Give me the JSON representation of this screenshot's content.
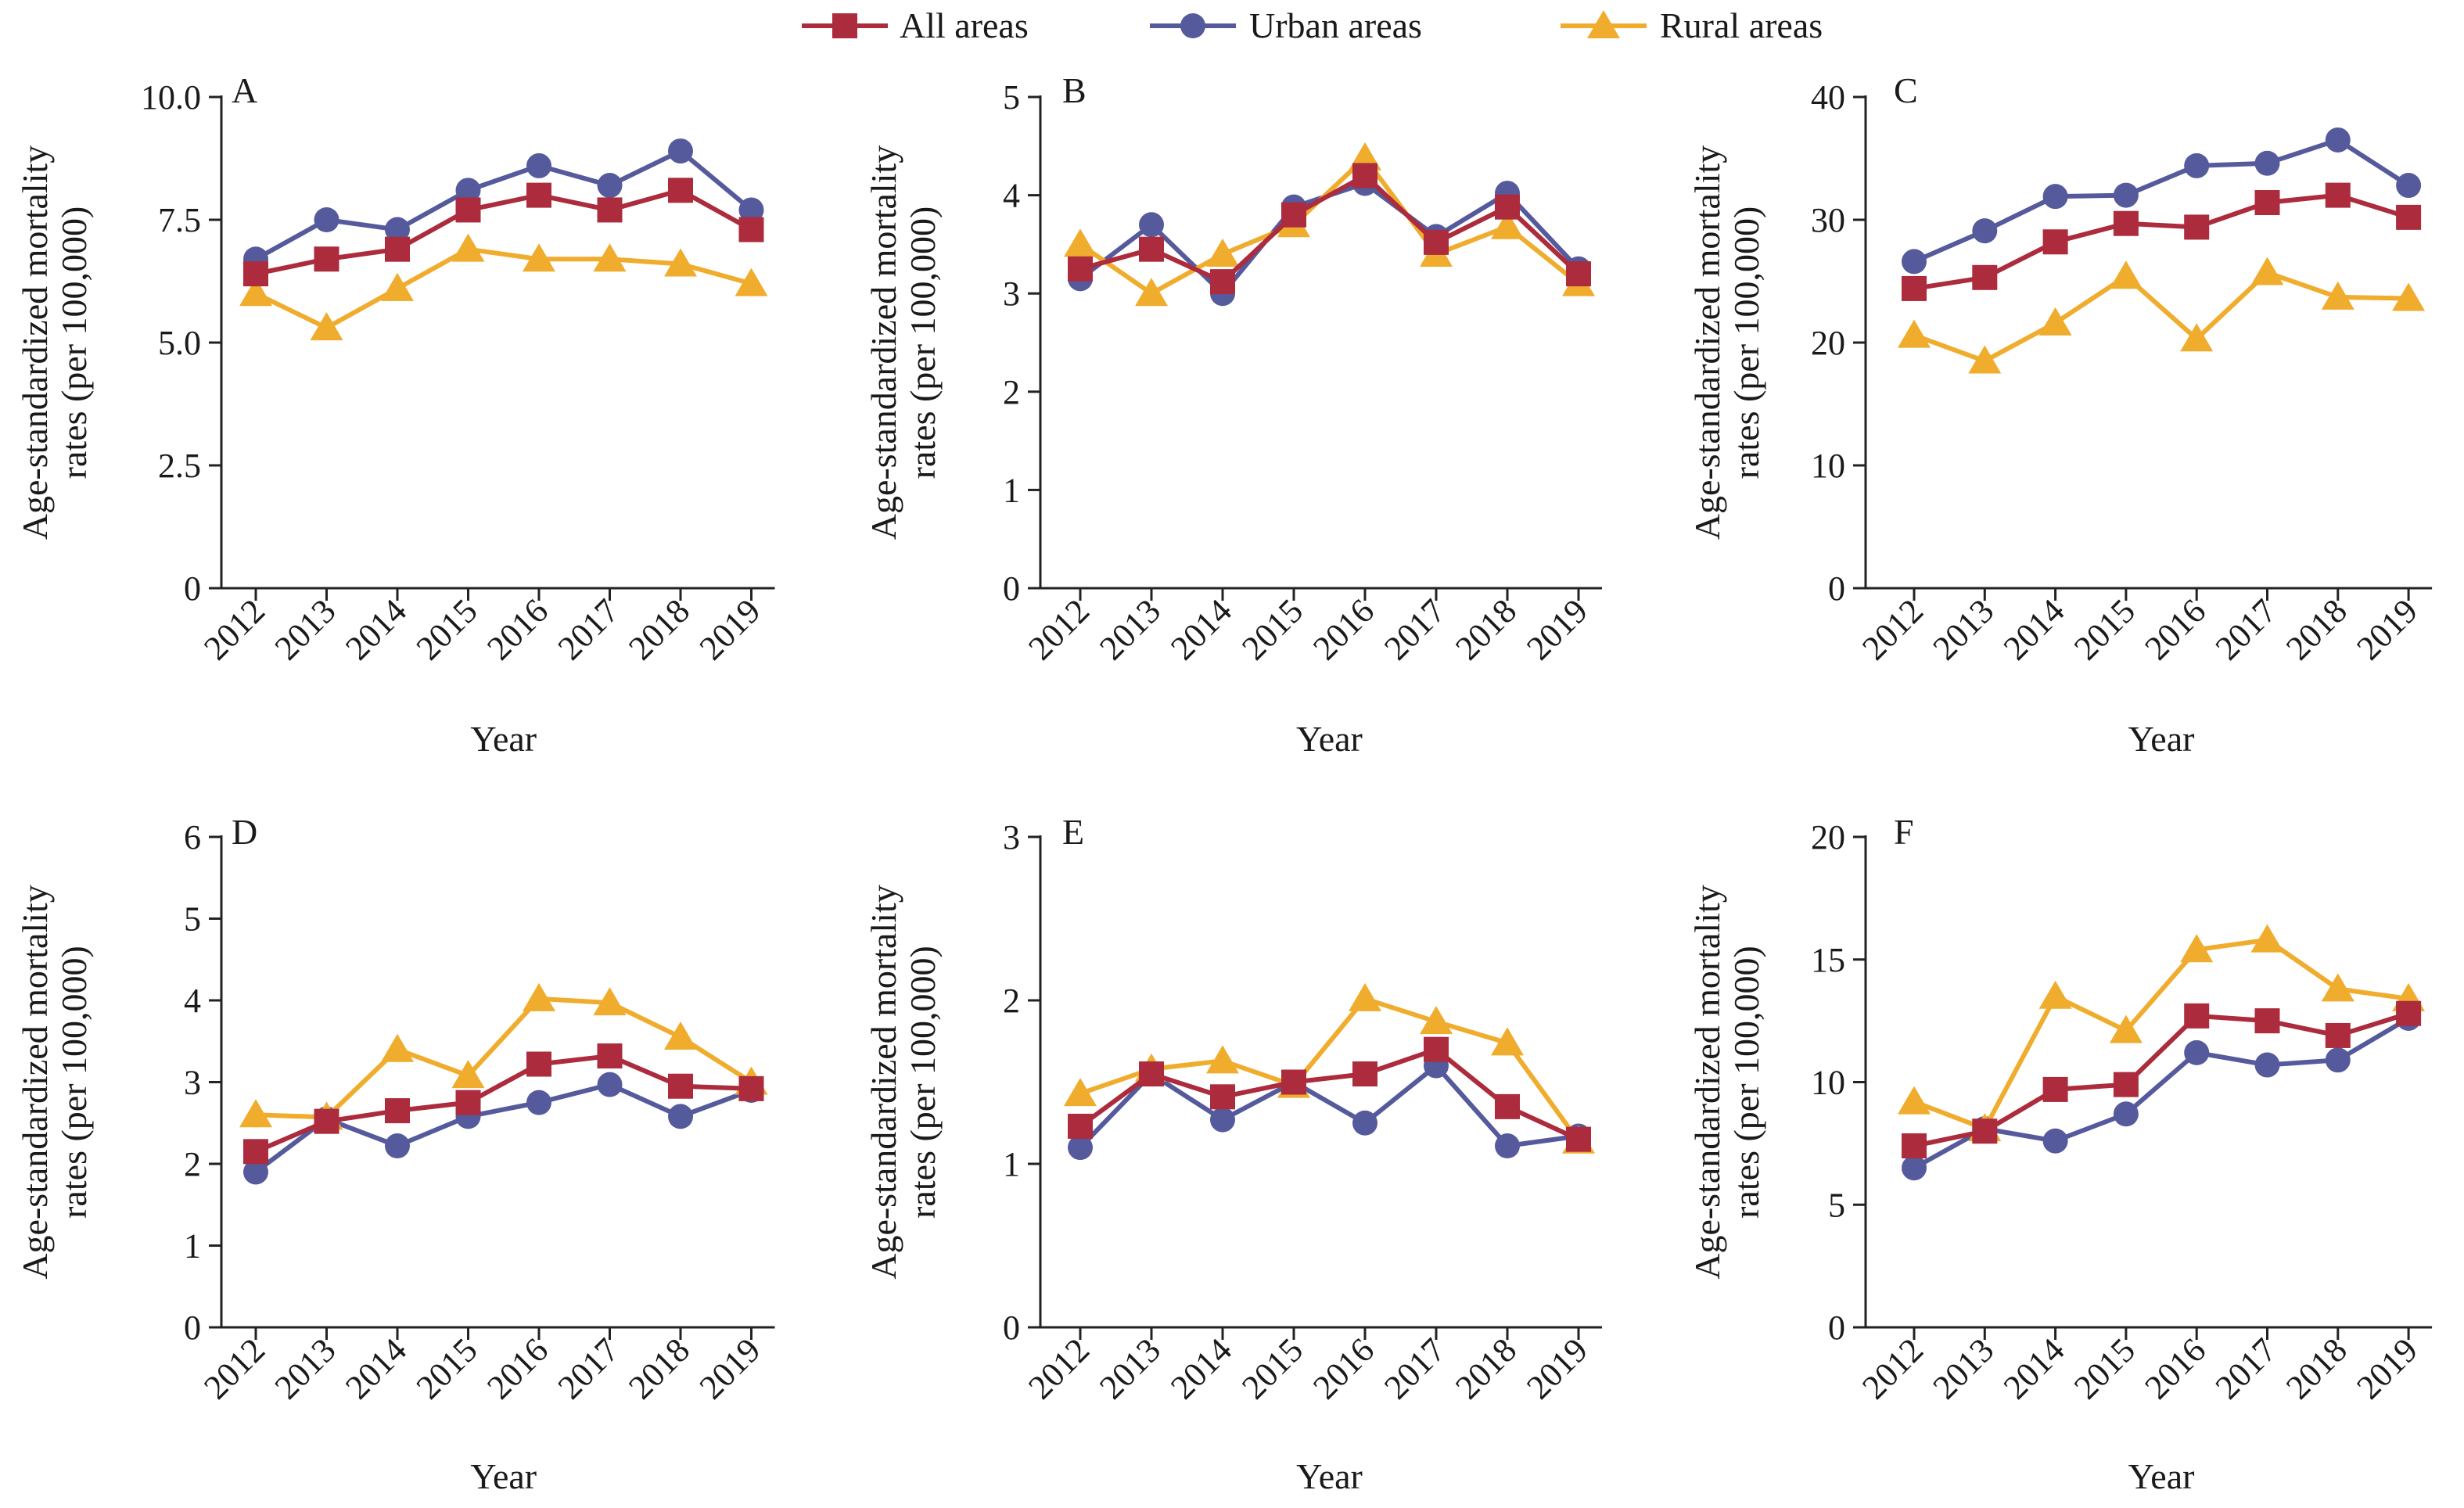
{
  "legend": [
    {
      "name": "All areas",
      "color": "#ac2b3c",
      "marker": "square"
    },
    {
      "name": "Urban areas",
      "color": "#555a9c",
      "marker": "circle"
    },
    {
      "name": "Rural areas",
      "color": "#f0ac2c",
      "marker": "triangle"
    }
  ],
  "chart_data": [
    {
      "type": "line",
      "panel": "A",
      "xlabel": "Year",
      "ylabel": [
        "Age-standardized mortality",
        "rates (per 100,000)"
      ],
      "categories": [
        "2012",
        "2013",
        "2014",
        "2015",
        "2016",
        "2017",
        "2018",
        "2019"
      ],
      "ylim": [
        0,
        10
      ],
      "yticks": [
        "0",
        "2.5",
        "5.0",
        "7.5",
        "10.0"
      ],
      "series": [
        {
          "name": "All areas",
          "values": [
            6.4,
            6.7,
            6.9,
            7.7,
            8.0,
            7.7,
            8.1,
            7.3
          ]
        },
        {
          "name": "Urban areas",
          "values": [
            6.7,
            7.5,
            7.3,
            8.1,
            8.6,
            8.2,
            8.9,
            7.7
          ]
        },
        {
          "name": "Rural areas",
          "values": [
            6.0,
            5.3,
            6.1,
            6.9,
            6.7,
            6.7,
            6.6,
            6.2
          ]
        }
      ]
    },
    {
      "type": "line",
      "panel": "B",
      "xlabel": "Year",
      "ylabel": [
        "Age-standardized mortality",
        "rates (per 100,000)"
      ],
      "categories": [
        "2012",
        "2013",
        "2014",
        "2015",
        "2016",
        "2017",
        "2018",
        "2019"
      ],
      "ylim": [
        0,
        5
      ],
      "yticks": [
        "0",
        "1",
        "2",
        "3",
        "4",
        "5"
      ],
      "series": [
        {
          "name": "All areas",
          "values": [
            3.25,
            3.45,
            3.12,
            3.8,
            4.2,
            3.52,
            3.88,
            3.2
          ]
        },
        {
          "name": "Urban areas",
          "values": [
            3.15,
            3.7,
            3.0,
            3.88,
            4.12,
            3.58,
            4.02,
            3.25
          ]
        },
        {
          "name": "Rural areas",
          "values": [
            3.5,
            3.0,
            3.4,
            3.7,
            4.38,
            3.4,
            3.68,
            3.1
          ]
        }
      ]
    },
    {
      "type": "line",
      "panel": "C",
      "xlabel": "Year",
      "ylabel": [
        "Age-standardized mortality",
        "rates (per 100,000)"
      ],
      "categories": [
        "2012",
        "2013",
        "2014",
        "2015",
        "2016",
        "2017",
        "2018",
        "2019"
      ],
      "ylim": [
        0,
        40
      ],
      "yticks": [
        "0",
        "10",
        "20",
        "30",
        "40"
      ],
      "series": [
        {
          "name": "All areas",
          "values": [
            24.4,
            25.3,
            28.2,
            29.7,
            29.4,
            31.4,
            32.0,
            30.2
          ]
        },
        {
          "name": "Urban areas",
          "values": [
            26.6,
            29.1,
            31.9,
            32.0,
            34.4,
            34.6,
            36.5,
            32.8
          ]
        },
        {
          "name": "Rural areas",
          "values": [
            20.6,
            18.5,
            21.6,
            25.4,
            20.3,
            25.7,
            23.7,
            23.6
          ]
        }
      ]
    },
    {
      "type": "line",
      "panel": "D",
      "xlabel": "Year",
      "ylabel": [
        "Age-standardized mortality",
        "rates (per 100,000)"
      ],
      "categories": [
        "2012",
        "2013",
        "2014",
        "2015",
        "2016",
        "2017",
        "2018",
        "2019"
      ],
      "ylim": [
        0,
        6
      ],
      "yticks": [
        "0",
        "1",
        "2",
        "3",
        "4",
        "5",
        "6"
      ],
      "series": [
        {
          "name": "All areas",
          "values": [
            2.15,
            2.52,
            2.65,
            2.75,
            3.22,
            3.32,
            2.95,
            2.92
          ]
        },
        {
          "name": "Urban areas",
          "values": [
            1.9,
            2.55,
            2.22,
            2.58,
            2.75,
            2.97,
            2.58,
            2.9
          ]
        },
        {
          "name": "Rural areas",
          "values": [
            2.6,
            2.57,
            3.4,
            3.08,
            4.02,
            3.97,
            3.55,
            3.0
          ]
        }
      ]
    },
    {
      "type": "line",
      "panel": "E",
      "xlabel": "Year",
      "ylabel": [
        "Age-standardized mortality",
        "rates (per 100,000)"
      ],
      "categories": [
        "2012",
        "2013",
        "2014",
        "2015",
        "2016",
        "2017",
        "2018",
        "2019"
      ],
      "ylim": [
        0,
        3
      ],
      "yticks": [
        "0",
        "1",
        "2",
        "3"
      ],
      "series": [
        {
          "name": "All areas",
          "values": [
            1.23,
            1.55,
            1.41,
            1.5,
            1.55,
            1.7,
            1.35,
            1.15
          ]
        },
        {
          "name": "Urban areas",
          "values": [
            1.1,
            1.55,
            1.27,
            1.5,
            1.25,
            1.6,
            1.11,
            1.17
          ]
        },
        {
          "name": "Rural areas",
          "values": [
            1.43,
            1.58,
            1.63,
            1.48,
            2.01,
            1.87,
            1.74,
            1.14
          ]
        }
      ]
    },
    {
      "type": "line",
      "panel": "F",
      "xlabel": "Year",
      "ylabel": [
        "Age-standardized mortality",
        "rates (per 100,000)"
      ],
      "categories": [
        "2012",
        "2013",
        "2014",
        "2015",
        "2016",
        "2017",
        "2018",
        "2019"
      ],
      "ylim": [
        0,
        20
      ],
      "yticks": [
        "0",
        "5",
        "10",
        "15",
        "20"
      ],
      "series": [
        {
          "name": "All areas",
          "values": [
            7.4,
            8.0,
            9.7,
            9.9,
            12.7,
            12.5,
            11.9,
            12.8
          ]
        },
        {
          "name": "Urban areas",
          "values": [
            6.5,
            8.1,
            7.6,
            8.7,
            11.2,
            10.7,
            10.9,
            12.6
          ]
        },
        {
          "name": "Rural areas",
          "values": [
            9.2,
            8.1,
            13.5,
            12.1,
            15.4,
            15.8,
            13.8,
            13.4
          ]
        }
      ]
    }
  ]
}
